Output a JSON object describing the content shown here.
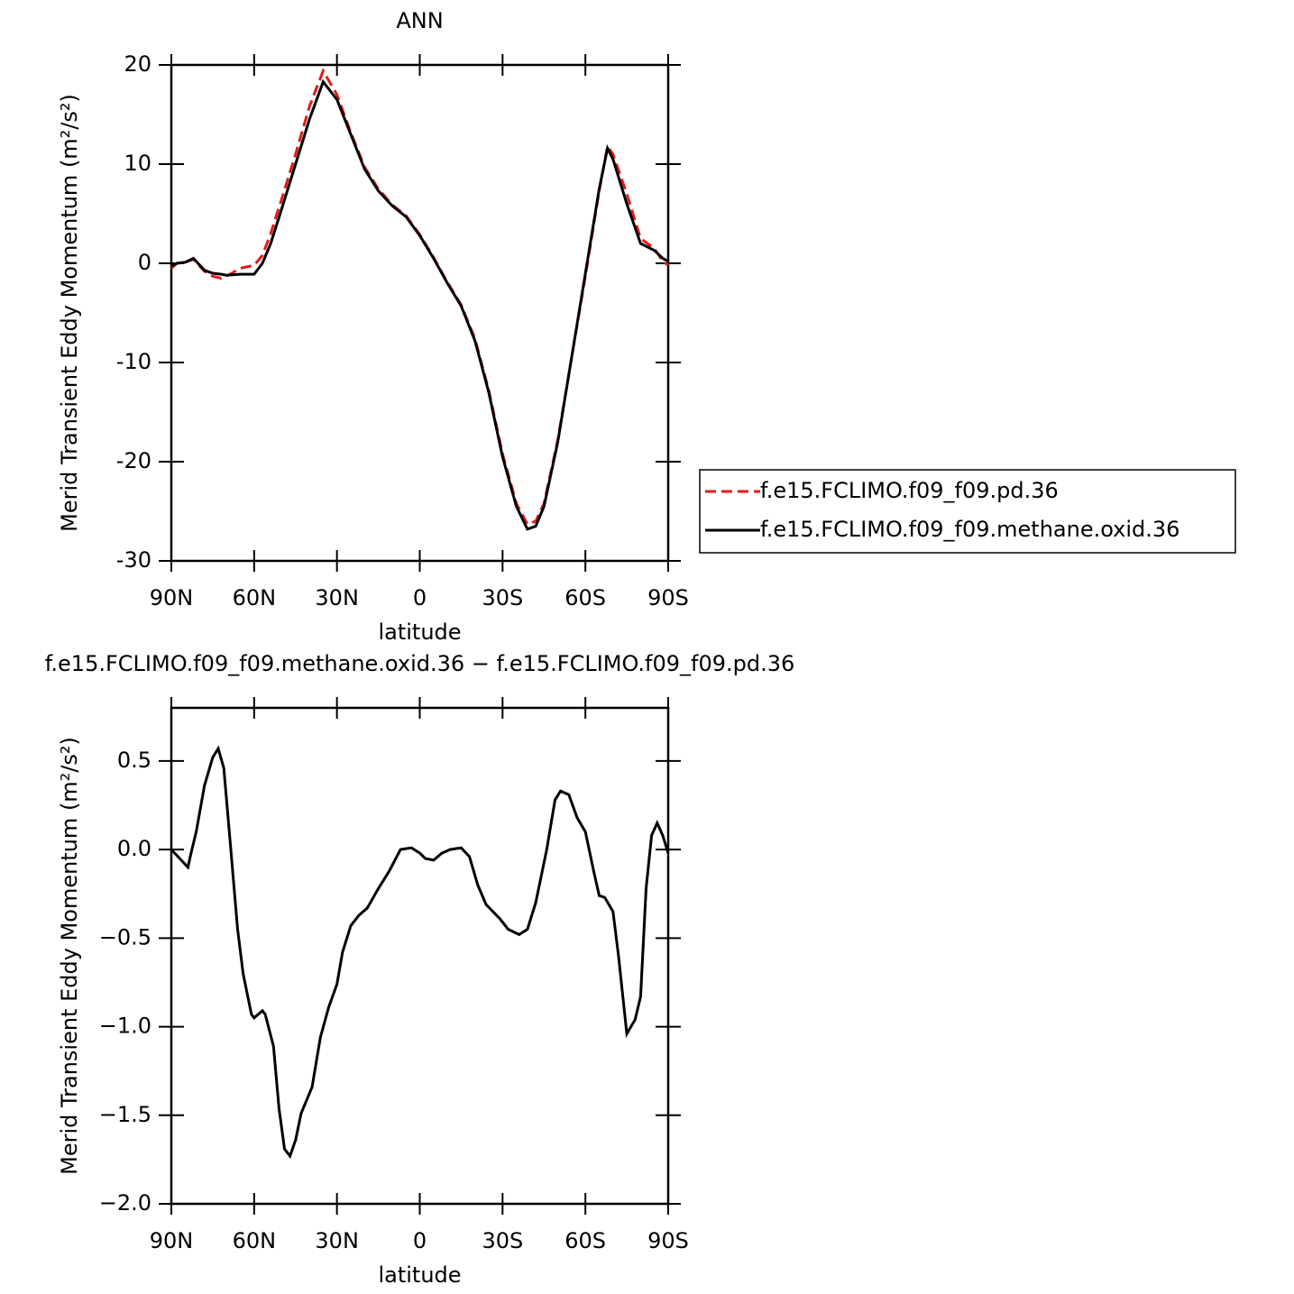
{
  "chart_data": [
    {
      "type": "line",
      "title": "ANN",
      "xlabel": "latitude",
      "ylabel": "Merid Transient Eddy Momentum (m²/s²)",
      "x": [
        90,
        88,
        85,
        82,
        78,
        75,
        72,
        70,
        65,
        60,
        57,
        54,
        50,
        45,
        40,
        35,
        30,
        25,
        20,
        15,
        10,
        5,
        0,
        -5,
        -10,
        -15,
        -20,
        -25,
        -30,
        -35,
        -39,
        -42,
        -45,
        -50,
        -55,
        -60,
        -65,
        -68,
        -70,
        -75,
        -80,
        -85,
        -88,
        -90
      ],
      "series": [
        {
          "name": "f.e15.FCLIMO.f09_f09.pd.36",
          "color": "#e41a1c",
          "dashed": true,
          "values": [
            -0.5,
            0,
            0.1,
            0.4,
            -0.8,
            -1.3,
            -1.5,
            -1.3,
            -0.5,
            -0.2,
            0.8,
            3,
            6.5,
            11,
            15.8,
            19.4,
            17,
            13.2,
            9.7,
            7.5,
            5.9,
            4.8,
            2.9,
            0.6,
            -1.9,
            -4.2,
            -7.6,
            -12.8,
            -19.2,
            -24.2,
            -26.3,
            -26.0,
            -24.2,
            -17.8,
            -9.5,
            -1.3,
            7.3,
            11.8,
            11,
            7,
            2.5,
            1.5,
            0.2,
            -0.2
          ]
        },
        {
          "name": "f.e15.FCLIMO.f09_f09.methane.oxid.36",
          "color": "#000000",
          "dashed": false,
          "values": [
            -0.3,
            0,
            0.1,
            0.5,
            -0.7,
            -1.0,
            -1.1,
            -1.2,
            -1.1,
            -1.1,
            0,
            2,
            5.5,
            10,
            14.5,
            18.3,
            16.5,
            13,
            9.5,
            7.3,
            5.8,
            4.7,
            2.8,
            0.5,
            -2,
            -4.3,
            -7.8,
            -13,
            -19.5,
            -24.5,
            -26.8,
            -26.5,
            -24.5,
            -18,
            -9.5,
            -1,
            7.5,
            11.6,
            10.5,
            6,
            2,
            1.3,
            0.5,
            0.2
          ]
        }
      ],
      "xlim": [
        90,
        -90
      ],
      "xticks": [
        {
          "value": 90,
          "label": "90N"
        },
        {
          "value": 60,
          "label": "60N"
        },
        {
          "value": 30,
          "label": "30N"
        },
        0,
        {
          "value": -30,
          "label": "30S"
        },
        {
          "value": -60,
          "label": "60S"
        },
        {
          "value": -90,
          "label": "90S"
        }
      ],
      "ylim": [
        -30,
        20
      ],
      "yticks": [
        -30,
        -20,
        -10,
        0,
        10,
        20
      ],
      "legend": "outside right"
    },
    {
      "type": "line",
      "title": "f.e15.FCLIMO.f09_f09.methane.oxid.36 − f.e15.FCLIMO.f09_f09.pd.36",
      "xlabel": "latitude",
      "ylabel": "Merid Transient Eddy Momentum (m²/s²)",
      "x": [
        90,
        87,
        84,
        83,
        81,
        78,
        75,
        73,
        71,
        69,
        66,
        64,
        61,
        60,
        57,
        56,
        53,
        51,
        49,
        47,
        45,
        43,
        39,
        36,
        33,
        30,
        28,
        25,
        22,
        19,
        15,
        11,
        7,
        3,
        0,
        -2,
        -5,
        -8,
        -11,
        -15,
        -18,
        -21,
        -24,
        -29,
        -32,
        -36,
        -39,
        -42,
        -46,
        -49,
        -51,
        -54,
        -57,
        -60,
        -63,
        -65,
        -67,
        -70,
        -72,
        -75,
        -78,
        -80,
        -82,
        -84,
        -86,
        -88,
        -90
      ],
      "values": [
        0,
        -0.05,
        -0.1,
        -0.03,
        0.1,
        0.36,
        0.52,
        0.57,
        0.46,
        0.1,
        -0.45,
        -0.7,
        -0.93,
        -0.95,
        -0.91,
        -0.93,
        -1.11,
        -1.46,
        -1.69,
        -1.73,
        -1.64,
        -1.49,
        -1.34,
        -1.06,
        -0.89,
        -0.76,
        -0.58,
        -0.43,
        -0.37,
        -0.33,
        -0.22,
        -0.12,
        0,
        0.01,
        -0.02,
        -0.05,
        -0.06,
        -0.02,
        0,
        0.01,
        -0.04,
        -0.2,
        -0.31,
        -0.39,
        -0.45,
        -0.48,
        -0.45,
        -0.3,
        0,
        0.28,
        0.33,
        0.31,
        0.18,
        0.1,
        -0.12,
        -0.26,
        -0.27,
        -0.35,
        -0.6,
        -1.04,
        -0.96,
        -0.83,
        -0.22,
        0.08,
        0.15,
        0.08,
        -0.02
      ],
      "color": "#000000",
      "xlim": [
        90,
        -90
      ],
      "xticks": [
        {
          "value": 90,
          "label": "90N"
        },
        {
          "value": 60,
          "label": "60N"
        },
        {
          "value": 30,
          "label": "30N"
        },
        0,
        {
          "value": -30,
          "label": "30S"
        },
        {
          "value": -60,
          "label": "60S"
        },
        {
          "value": -90,
          "label": "90S"
        }
      ],
      "ylim": [
        -2.0,
        0.8
      ],
      "yticks": [
        {
          "value": -2,
          "label": "−2.0"
        },
        {
          "value": -1.5,
          "label": "−1.5"
        },
        {
          "value": -1,
          "label": "−1.0"
        },
        {
          "value": -0.5,
          "label": "−0.5"
        },
        {
          "value": 0,
          "label": "0.0"
        },
        0.5
      ]
    }
  ]
}
